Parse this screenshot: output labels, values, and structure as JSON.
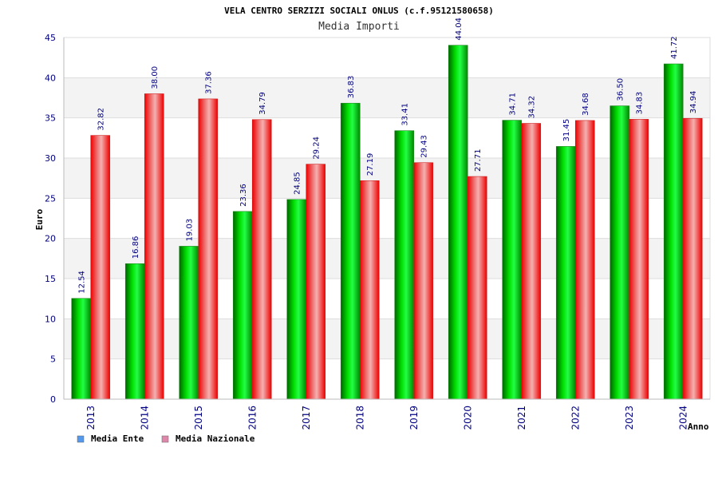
{
  "chart_data": {
    "type": "bar",
    "title": "VELA CENTRO SERZIZI SOCIALI ONLUS (c.f.95121580658)",
    "subtitle": "Media Importi",
    "xlabel": "Anno",
    "ylabel": "Euro",
    "ylim": [
      0,
      45
    ],
    "yticks": [
      0,
      5,
      10,
      15,
      20,
      25,
      30,
      35,
      40,
      45
    ],
    "categories": [
      "2013",
      "2014",
      "2015",
      "2016",
      "2017",
      "2018",
      "2019",
      "2020",
      "2021",
      "2022",
      "2023",
      "2024"
    ],
    "series": [
      {
        "name": "Media Ente",
        "color": "#00aa00",
        "legend_color": "#5599ee",
        "values": [
          12.54,
          16.86,
          19.03,
          23.36,
          24.85,
          36.83,
          33.41,
          44.04,
          34.71,
          31.45,
          36.5,
          41.72
        ],
        "labels": [
          "12.54",
          "16.86",
          "19.03",
          "23.36",
          "24.85",
          "36.83",
          "33.41",
          "44.04",
          "34.71",
          "31.45",
          "36.50",
          "41.72"
        ]
      },
      {
        "name": "Media Nazionale",
        "color": "#ee0000",
        "legend_color": "#dd88aa",
        "values": [
          32.82,
          38.0,
          37.36,
          34.79,
          29.24,
          27.19,
          29.43,
          27.71,
          34.32,
          34.68,
          34.83,
          34.94
        ],
        "labels": [
          "32.82",
          "38.00",
          "37.36",
          "34.79",
          "29.24",
          "27.19",
          "29.43",
          "27.71",
          "34.32",
          "34.68",
          "34.83",
          "34.94"
        ]
      }
    ],
    "grid": true,
    "legend": "bottom-left"
  }
}
